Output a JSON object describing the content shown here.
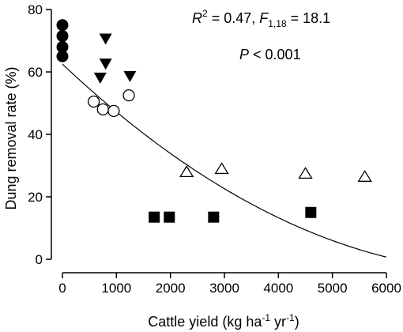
{
  "chart_data": {
    "type": "scatter",
    "xlabel": "Cattle yield (kg ha",
    "xlabel_unit_exp1": "-1",
    "xlabel_unit_mid": " yr",
    "xlabel_unit_exp2": "-1",
    "xlabel_close": ")",
    "ylabel": "Dung removal rate (%)",
    "xlim": [
      -100,
      6000
    ],
    "ylim": [
      -2,
      80
    ],
    "x_ticks": [
      0,
      1000,
      2000,
      3000,
      4000,
      5000,
      6000
    ],
    "x_tick_labels": [
      "0",
      "1000",
      "2000",
      "3000",
      "4000",
      "5000",
      "6000"
    ],
    "y_ticks": [
      0,
      20,
      40,
      60,
      80
    ],
    "y_tick_labels": [
      "0",
      "20",
      "40",
      "60",
      "80"
    ],
    "grid": false,
    "annotation": {
      "r_symbol": "R",
      "r_exp": "2",
      "r_value": " = 0.47, ",
      "f_symbol": "F",
      "f_sub": "1,18",
      "f_value": " = 18.1",
      "p_symbol": "P",
      "p_value": " < 0.001"
    },
    "series": [
      {
        "marker": "filled-circle",
        "points": [
          [
            0,
            75
          ],
          [
            0,
            71.5
          ],
          [
            0,
            68
          ],
          [
            0,
            65
          ]
        ]
      },
      {
        "marker": "filled-triangle-down",
        "points": [
          [
            800,
            70.5
          ],
          [
            800,
            62.5
          ],
          [
            700,
            58
          ],
          [
            1250,
            58.5
          ]
        ]
      },
      {
        "marker": "open-circle",
        "points": [
          [
            580,
            50.5
          ],
          [
            750,
            48
          ],
          [
            950,
            47.5
          ],
          [
            1230,
            52.5
          ]
        ]
      },
      {
        "marker": "open-triangle-up",
        "points": [
          [
            2300,
            28
          ],
          [
            2950,
            29
          ],
          [
            4500,
            27.5
          ],
          [
            5600,
            26.5
          ]
        ]
      },
      {
        "marker": "filled-square",
        "points": [
          [
            1700,
            13.5
          ],
          [
            1980,
            13.5
          ],
          [
            2800,
            13.5
          ],
          [
            4600,
            15
          ]
        ]
      }
    ],
    "fit_curve": {
      "type": "quadratic",
      "coefficients": {
        "a": 62.5,
        "b": -0.0163,
        "c": 1e-06
      },
      "x_range": [
        0,
        6000
      ]
    }
  }
}
